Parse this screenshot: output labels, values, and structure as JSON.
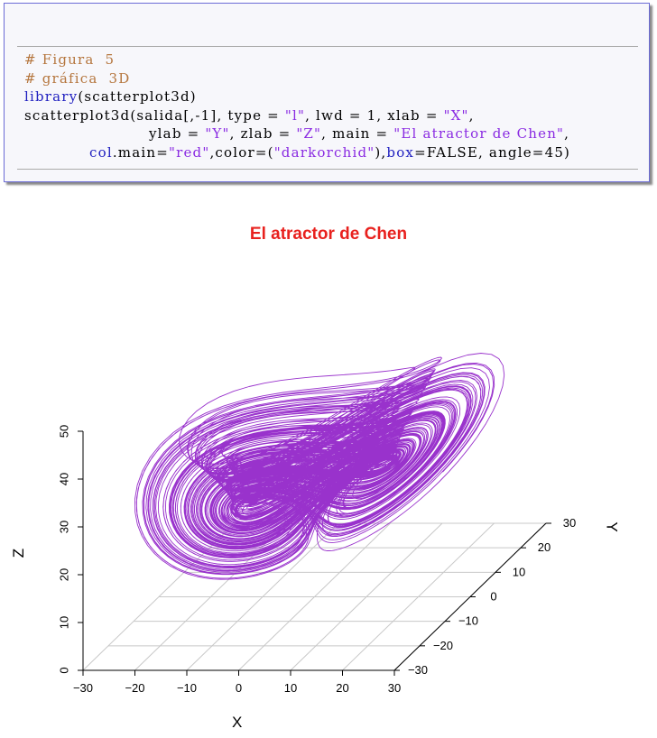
{
  "code": {
    "lines": [
      {
        "segments": [
          {
            "text": "# Figura  5",
            "cls": "comment"
          }
        ]
      },
      {
        "segments": [
          {
            "text": "# gráfica  3D",
            "cls": "comment"
          }
        ]
      },
      {
        "segments": [
          {
            "text": "library",
            "cls": "kw"
          },
          {
            "text": "(scatterplot3d)",
            "cls": ""
          }
        ]
      },
      {
        "segments": [
          {
            "text": "scatterplot3d(salida[,-1], type = ",
            "cls": ""
          },
          {
            "text": "\"l\"",
            "cls": "str"
          },
          {
            "text": ", lwd = 1, xlab = ",
            "cls": ""
          },
          {
            "text": "\"X\"",
            "cls": "str"
          },
          {
            "text": ",",
            "cls": ""
          }
        ]
      },
      {
        "segments": [
          {
            "text": "ylab = ",
            "cls": ""
          },
          {
            "text": "\"Y\"",
            "cls": "str"
          },
          {
            "text": ", zlab = ",
            "cls": ""
          },
          {
            "text": "\"Z\"",
            "cls": "str"
          },
          {
            "text": ", main = ",
            "cls": ""
          },
          {
            "text": "\"El atractor de Chen\"",
            "cls": "str"
          },
          {
            "text": ",",
            "cls": ""
          }
        ]
      },
      {
        "segments": [
          {
            "text": "col",
            "cls": "kw"
          },
          {
            "text": ".main=",
            "cls": ""
          },
          {
            "text": "\"red\"",
            "cls": "str"
          },
          {
            "text": ",color=(",
            "cls": ""
          },
          {
            "text": "\"darkorchid\"",
            "cls": "str"
          },
          {
            "text": "),",
            "cls": ""
          },
          {
            "text": "box",
            "cls": "kw"
          },
          {
            "text": "=FALSE, angle=45)",
            "cls": ""
          }
        ]
      }
    ]
  },
  "chart_data": {
    "type": "line",
    "title": "El atractor de Chen",
    "xlabel": "X",
    "ylabel": "Y",
    "zlabel": "Z",
    "xlim": [
      -30,
      30
    ],
    "ylim": [
      -30,
      30
    ],
    "zlim": [
      0,
      50
    ],
    "x_ticks": [
      "−30",
      "−20",
      "−10",
      "0",
      "10",
      "20",
      "30"
    ],
    "y_ticks": [
      "−30",
      "−20",
      "−10",
      "0",
      "10",
      "20",
      "30"
    ],
    "z_ticks": [
      "0",
      "10",
      "20",
      "30",
      "40",
      "50"
    ],
    "color": "#9932cc",
    "title_color": "#e8211e",
    "box": false,
    "angle": 45,
    "grid": true,
    "lwd": 1
  }
}
